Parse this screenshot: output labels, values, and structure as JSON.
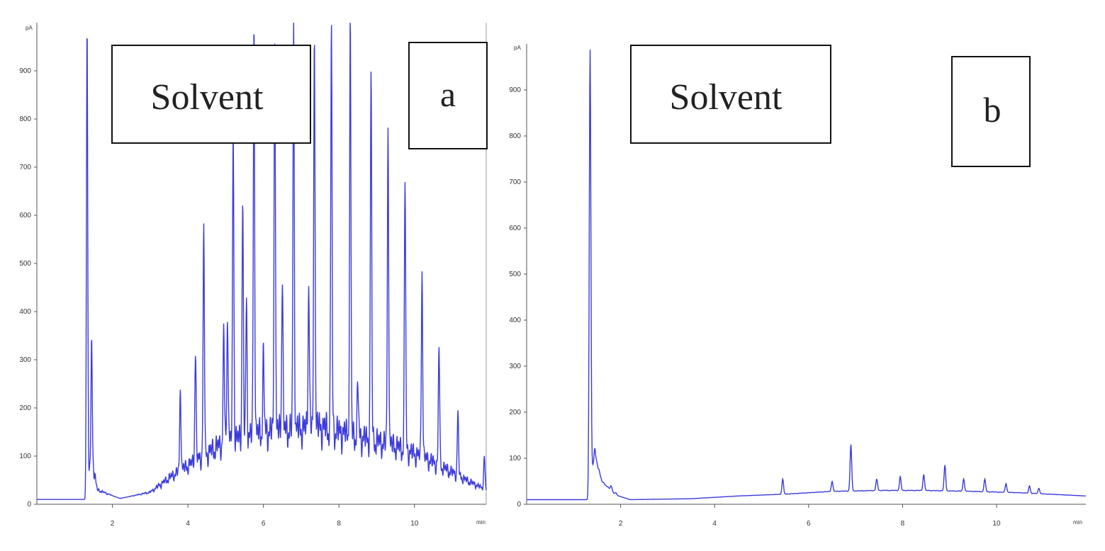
{
  "chart_data": [
    {
      "panel": "a",
      "type": "line",
      "title": "",
      "xlabel": "",
      "ylabel": "",
      "y_unit": "pA",
      "x_unit": "min",
      "xlim": [
        0,
        11.9
      ],
      "ylim": [
        0,
        1000
      ],
      "x_ticks": [
        2,
        4,
        6,
        8,
        10
      ],
      "x_tick_labels": [
        "2",
        "4",
        "6",
        "8",
        "10"
      ],
      "y_ticks": [
        0,
        100,
        200,
        300,
        400,
        500,
        600,
        700,
        800,
        900
      ],
      "y_tick_labels": [
        "0",
        "100",
        "200",
        "300",
        "400",
        "500",
        "600",
        "700",
        "800",
        "900"
      ],
      "annotations": [
        "Solvent",
        "a"
      ],
      "color": "#3b3bdc",
      "baseline": [
        [
          0,
          10
        ],
        [
          1.3,
          10
        ],
        [
          1.45,
          100
        ],
        [
          1.6,
          30
        ],
        [
          2.2,
          12
        ],
        [
          3,
          25
        ],
        [
          3.6,
          60
        ],
        [
          4.2,
          90
        ],
        [
          5,
          130
        ],
        [
          6,
          150
        ],
        [
          6.7,
          155
        ],
        [
          7.5,
          160
        ],
        [
          8.5,
          140
        ],
        [
          9.5,
          120
        ],
        [
          10.3,
          95
        ],
        [
          10.9,
          70
        ],
        [
          11.5,
          45
        ],
        [
          11.9,
          30
        ]
      ],
      "peaks": [
        [
          1.33,
          1000
        ],
        [
          1.45,
          330
        ],
        [
          3.8,
          240
        ],
        [
          4.2,
          320
        ],
        [
          4.42,
          570
        ],
        [
          4.95,
          360
        ],
        [
          5.05,
          400
        ],
        [
          5.2,
          780
        ],
        [
          5.45,
          630
        ],
        [
          5.55,
          420
        ],
        [
          5.75,
          1000
        ],
        [
          6.0,
          310
        ],
        [
          6.3,
          1000
        ],
        [
          6.5,
          480
        ],
        [
          6.8,
          1000
        ],
        [
          7.2,
          470
        ],
        [
          7.35,
          1000
        ],
        [
          7.8,
          1000
        ],
        [
          8.3,
          1000
        ],
        [
          8.5,
          250
        ],
        [
          8.85,
          900
        ],
        [
          9.3,
          780
        ],
        [
          9.75,
          680
        ],
        [
          10.2,
          490
        ],
        [
          10.65,
          330
        ],
        [
          11.15,
          190
        ],
        [
          11.85,
          100
        ]
      ],
      "noise_amp": 60
    },
    {
      "panel": "b",
      "type": "line",
      "title": "",
      "xlabel": "",
      "ylabel": "",
      "y_unit": "pA",
      "x_unit": "min",
      "xlim": [
        0,
        11.9
      ],
      "ylim": [
        0,
        1000
      ],
      "x_ticks": [
        2,
        4,
        6,
        8,
        10
      ],
      "x_tick_labels": [
        "2",
        "4",
        "6",
        "8",
        "10"
      ],
      "y_ticks": [
        0,
        100,
        200,
        300,
        400,
        500,
        600,
        700,
        800,
        900
      ],
      "y_tick_labels": [
        "0",
        "100",
        "200",
        "300",
        "400",
        "500",
        "600",
        "700",
        "800",
        "900"
      ],
      "annotations": [
        "Solvent",
        "b"
      ],
      "color": "#3b3bdc",
      "baseline": [
        [
          0,
          10
        ],
        [
          1.3,
          10
        ],
        [
          1.45,
          110
        ],
        [
          1.6,
          50
        ],
        [
          1.9,
          20
        ],
        [
          2.2,
          10
        ],
        [
          3.5,
          12
        ],
        [
          4.5,
          18
        ],
        [
          5.5,
          22
        ],
        [
          6.5,
          28
        ],
        [
          7.5,
          30
        ],
        [
          8.5,
          30
        ],
        [
          9.5,
          28
        ],
        [
          10.5,
          25
        ],
        [
          11.5,
          20
        ],
        [
          11.9,
          18
        ]
      ],
      "peaks": [
        [
          1.35,
          990
        ],
        [
          1.45,
          120
        ],
        [
          1.55,
          70
        ],
        [
          1.8,
          40
        ],
        [
          1.9,
          25
        ],
        [
          5.45,
          55
        ],
        [
          6.5,
          50
        ],
        [
          6.9,
          130
        ],
        [
          7.45,
          55
        ],
        [
          7.95,
          60
        ],
        [
          8.45,
          65
        ],
        [
          8.9,
          85
        ],
        [
          9.3,
          55
        ],
        [
          9.75,
          55
        ],
        [
          10.2,
          45
        ],
        [
          10.7,
          40
        ],
        [
          10.9,
          35
        ]
      ],
      "noise_amp": 10
    }
  ]
}
